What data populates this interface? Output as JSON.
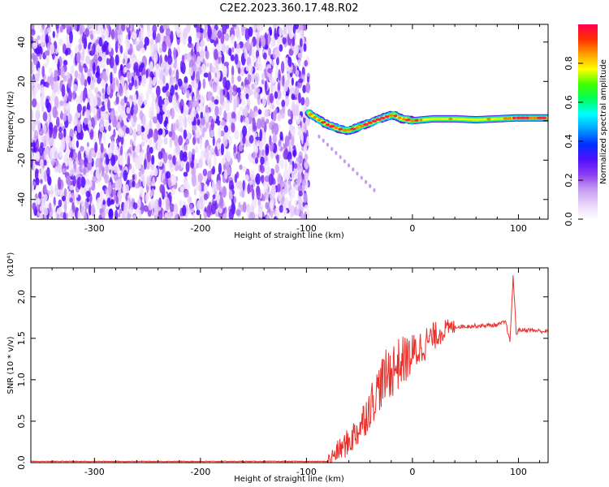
{
  "figure_title": "C2E2.2023.360.17.48.R02",
  "chart_data": [
    {
      "type": "heatmap",
      "title": "",
      "xlabel": "Height of straight line (km)",
      "ylabel": "Frequency (Hz)",
      "xlim": [
        -360,
        128
      ],
      "ylim": [
        -50,
        49
      ],
      "xticks": [
        "-300",
        "-200",
        "-100",
        "0",
        "100"
      ],
      "xtick_values": [
        -300,
        -200,
        -100,
        0,
        100
      ],
      "yticks": [
        "-40",
        "-20",
        "0",
        "20",
        "40"
      ],
      "ytick_values": [
        -40,
        -20,
        0,
        20,
        40
      ],
      "noise_region_x": [
        -360,
        -98
      ],
      "signal_track": {
        "x": [
          -98,
          -90,
          -80,
          -70,
          -62,
          -55,
          -45,
          -35,
          -25,
          -18,
          -10,
          0,
          20,
          40,
          60,
          80,
          100,
          128
        ],
        "y": [
          4,
          1,
          -2,
          -4,
          -5,
          -4,
          -2,
          0,
          2,
          3,
          1,
          0,
          1,
          1,
          0.5,
          1,
          1.5,
          1.5
        ]
      },
      "colorbar": {
        "label": "Normalized spectral amplitude",
        "range": [
          0.0,
          1.0
        ],
        "ticks": [
          "0.0",
          "0.2",
          "0.4",
          "0.6",
          "0.8"
        ],
        "tick_values": [
          0.0,
          0.2,
          0.4,
          0.6,
          0.8
        ],
        "colors": [
          "#ffffff",
          "#e9d4fa",
          "#c69af2",
          "#8a3cf0",
          "#5010ff",
          "#0030ff",
          "#00a0ff",
          "#00ffff",
          "#00ff60",
          "#40ff00",
          "#ffff00",
          "#ffa000",
          "#ff3000",
          "#ff0050"
        ]
      }
    },
    {
      "type": "line",
      "title": "",
      "xlabel": "Height of straight line (km)",
      "ylabel": "SNR (10 * v/v)",
      "y_multiplier": "(x10⁴)",
      "xlim": [
        -360,
        128
      ],
      "ylim": [
        0,
        2.35
      ],
      "xticks": [
        "-300",
        "-200",
        "-100",
        "0",
        "100"
      ],
      "xtick_values": [
        -300,
        -200,
        -100,
        0,
        100
      ],
      "yticks": [
        "0.0",
        "0.5",
        "1.0",
        "1.5",
        "2.0"
      ],
      "ytick_values": [
        0.0,
        0.5,
        1.0,
        1.5,
        2.0
      ],
      "series": [
        {
          "color": "#e8322e",
          "x": [
            -360,
            -80,
            -72,
            -60,
            -50,
            -40,
            -30,
            -20,
            -10,
            0,
            10,
            20,
            30,
            40,
            60,
            80,
            88,
            92,
            95,
            98,
            100,
            110,
            128
          ],
          "y": [
            0.01,
            0.01,
            0.12,
            0.25,
            0.42,
            0.68,
            0.95,
            1.12,
            1.22,
            1.3,
            1.42,
            1.52,
            1.6,
            1.64,
            1.65,
            1.66,
            1.7,
            1.45,
            2.25,
            1.55,
            1.6,
            1.6,
            1.58
          ]
        }
      ]
    }
  ]
}
